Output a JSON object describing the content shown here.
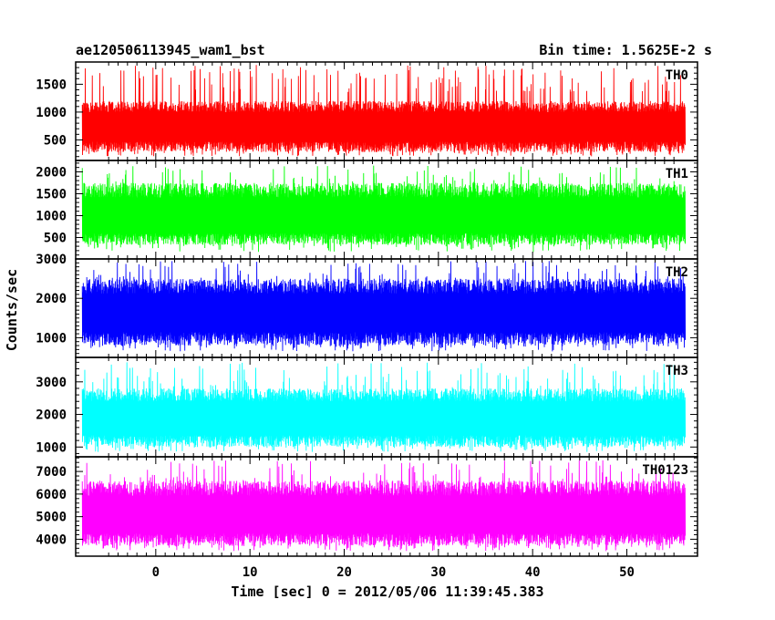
{
  "header": {
    "left_title": "ae120506113945_wam1_bst",
    "right_title": "Bin time: 1.5625E-2 s"
  },
  "chart_data": {
    "type": "line",
    "title": "ae120506113945_wam1_bst",
    "subtitle": "Bin time: 1.5625E-2 s",
    "xlabel": "Time [sec] 0 = 2012/05/06 11:39:45.383",
    "ylabel": "Counts/sec",
    "xlim": [
      -8.5,
      57.5
    ],
    "x_data_range": [
      -7.8,
      56.2
    ],
    "x_ticks": [
      0,
      10,
      20,
      30,
      40,
      50
    ],
    "grid": false,
    "legend": "none",
    "panels": [
      {
        "name": "TH0",
        "color": "#ff0000",
        "ylim": [
          130,
          1900
        ],
        "y_ticks": [
          500,
          1000,
          1500
        ],
        "baseline_range": [
          280,
          1200
        ],
        "peak_max": 1850,
        "mean": 750
      },
      {
        "name": "TH1",
        "color": "#00ff00",
        "ylim": [
          10,
          2260
        ],
        "y_ticks": [
          500,
          1000,
          1500,
          2000
        ],
        "baseline_range": [
          330,
          1750
        ],
        "peak_max": 2150,
        "mean": 1000
      },
      {
        "name": "TH2",
        "color": "#0000ff",
        "ylim": [
          500,
          3000
        ],
        "y_ticks": [
          1000,
          2000,
          3000
        ],
        "baseline_range": [
          800,
          2500
        ],
        "peak_max": 2950,
        "mean": 1650
      },
      {
        "name": "TH3",
        "color": "#00ffff",
        "ylim": [
          700,
          3750
        ],
        "y_ticks": [
          1000,
          2000,
          3000
        ],
        "baseline_range": [
          1000,
          2800
        ],
        "peak_max": 3600,
        "mean": 1900
      },
      {
        "name": "TH0123",
        "color": "#ff00ff",
        "ylim": [
          3250,
          7650
        ],
        "y_ticks": [
          4000,
          5000,
          6000,
          7000
        ],
        "baseline_range": [
          3700,
          6600
        ],
        "peak_max": 7500,
        "mean": 5100
      }
    ]
  }
}
